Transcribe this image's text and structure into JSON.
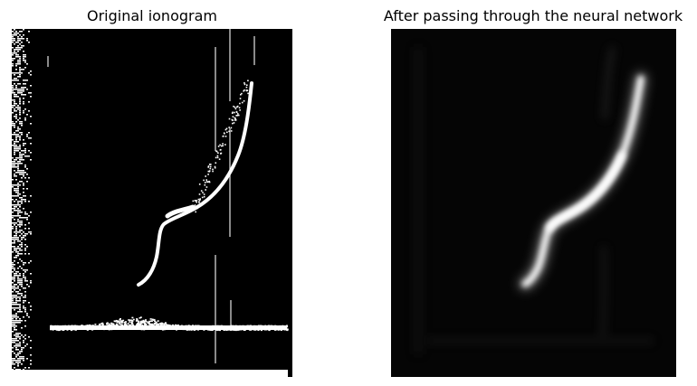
{
  "panels": {
    "left": {
      "title": "Original ionogram"
    },
    "right": {
      "title": "After passing through the neural network"
    }
  }
}
